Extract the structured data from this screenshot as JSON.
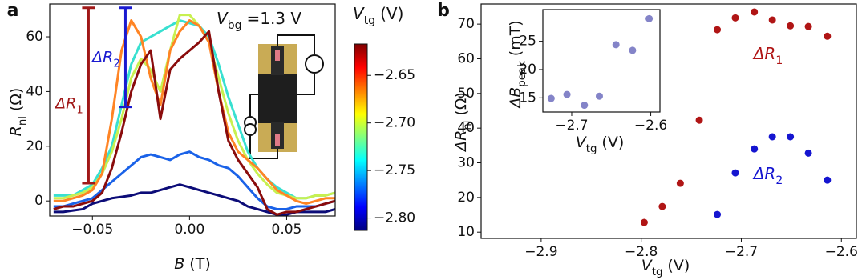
{
  "chart_data": [
    {
      "type": "line",
      "panel_label": "a",
      "xlabel": {
        "symbol": "B",
        "unit": "(T)"
      },
      "ylabel": {
        "symbol": "R",
        "subscript": "nl",
        "unit": "(Ω)"
      },
      "xlim": [
        -0.072,
        0.075
      ],
      "ylim": [
        -5.5,
        72
      ],
      "xticks": [
        {
          "value": -0.05,
          "label": "−0.05"
        },
        {
          "value": 0,
          "label": "0.00"
        },
        0.05
      ],
      "yticks": [
        0,
        20,
        40,
        60
      ],
      "x": [
        -0.07,
        -0.065,
        -0.06,
        -0.055,
        -0.05,
        -0.045,
        -0.04,
        -0.035,
        -0.03,
        -0.025,
        -0.02,
        -0.015,
        -0.01,
        -0.005,
        0,
        0.005,
        0.01,
        0.015,
        0.02,
        0.025,
        0.03,
        0.035,
        0.04,
        0.045,
        0.05,
        0.055,
        0.06,
        0.065,
        0.07,
        0.075
      ],
      "series": [
        {
          "color": "#0c0c78",
          "values": [
            -4,
            -4,
            -3.5,
            -3,
            -1,
            0,
            1,
            1.5,
            2,
            3,
            3,
            4,
            5,
            6,
            5,
            4,
            3,
            2,
            1,
            0,
            -2,
            -3,
            -4,
            -5,
            -5,
            -4,
            -4,
            -4,
            -4,
            -3
          ]
        },
        {
          "color": "#1a62e8",
          "values": [
            -2,
            -2,
            -1,
            0,
            1,
            4,
            7,
            10,
            13,
            16,
            17,
            16,
            15,
            17,
            18,
            16,
            15,
            13,
            12,
            9,
            5,
            1,
            -2,
            -3,
            -3,
            -2,
            -2,
            -2,
            -1,
            0
          ]
        },
        {
          "color": "#38e0d0",
          "values": [
            2,
            2,
            2,
            4,
            6,
            12,
            20,
            35,
            50,
            58,
            60,
            62,
            64,
            66,
            65,
            64,
            60,
            50,
            38,
            28,
            18,
            12,
            8,
            5,
            3,
            1,
            1,
            2,
            2,
            3
          ]
        },
        {
          "color": "#c8f050",
          "values": [
            1,
            1,
            2,
            3,
            5,
            10,
            18,
            30,
            45,
            52,
            48,
            40,
            55,
            68,
            68,
            64,
            58,
            45,
            32,
            22,
            15,
            10,
            6,
            3,
            2,
            1,
            1,
            2,
            2,
            3
          ]
        },
        {
          "color": "#ff8424",
          "values": [
            0,
            0,
            1,
            2,
            4,
            10,
            30,
            55,
            66,
            60,
            45,
            35,
            55,
            62,
            66,
            64,
            58,
            40,
            25,
            18,
            15,
            12,
            8,
            4,
            2,
            0,
            -1,
            0,
            1,
            1
          ]
        },
        {
          "color": "#8a0c0c",
          "values": [
            -3,
            -2,
            -2,
            -1,
            0,
            3,
            12,
            25,
            40,
            50,
            55,
            30,
            48,
            52,
            55,
            58,
            62,
            40,
            22,
            15,
            10,
            5,
            -3,
            -5,
            -4,
            -4,
            -3,
            -2,
            -1,
            0
          ]
        }
      ],
      "annotations": [
        {
          "label": {
            "symbol": "ΔR",
            "subscript": "1"
          },
          "color": "#a01818",
          "x": -0.052,
          "y": [
            6.5,
            70.6
          ]
        },
        {
          "label": {
            "symbol": "ΔR",
            "subscript": "2"
          },
          "color": "#1a1ad0",
          "x": -0.033,
          "y": [
            34.4,
            70.6
          ]
        }
      ],
      "text": {
        "symbol": "V",
        "subscript": "bg",
        "text": "=1.3 V"
      },
      "colorbar": {
        "label": {
          "symbol": "V",
          "subscript": "tg",
          "unit": "(V)"
        },
        "clim": [
          -2.813,
          -2.617
        ],
        "colormap": [
          "#00007f",
          "#0000ff",
          "#0080ff",
          "#00ffff",
          "#80ff80",
          "#ffff00",
          "#ff8000",
          "#ff0000",
          "#7f0000"
        ],
        "ticks": [
          {
            "value": -2.65,
            "label": "−2.65"
          },
          {
            "value": -2.7,
            "label": "−2.70"
          },
          {
            "value": -2.75,
            "label": "−2.75"
          },
          {
            "value": -2.8,
            "label": "−2.80"
          }
        ]
      }
    },
    {
      "type": "scatter",
      "panel_label": "b",
      "xlabel": {
        "symbol": "V",
        "subscript": "tg",
        "unit": "(V)"
      },
      "ylabel": {
        "symbol": "ΔR",
        "subscript": "nl",
        "unit": "(Ω)"
      },
      "xlim": [
        -2.96,
        -2.585
      ],
      "ylim": [
        8.2,
        75.8
      ],
      "xticks": [
        {
          "value": -2.9,
          "label": "−2.9"
        },
        {
          "value": -2.8,
          "label": "−2.8"
        },
        {
          "value": -2.7,
          "label": "−2.7"
        },
        {
          "value": -2.6,
          "label": "−2.6"
        }
      ],
      "yticks": [
        10,
        20,
        30,
        40,
        50,
        60,
        70
      ],
      "series": [
        {
          "color": "#b01515",
          "label": {
            "symbol": "ΔR",
            "subscript": "1"
          },
          "x": [
            -2.797,
            -2.779,
            -2.761,
            -2.742,
            -2.724,
            -2.706,
            -2.687,
            -2.669,
            -2.651,
            -2.633,
            -2.614
          ],
          "values": [
            12.8,
            17.4,
            24.1,
            42.3,
            68.4,
            71.8,
            73.5,
            71.2,
            69.5,
            69.3,
            66.5
          ]
        },
        {
          "color": "#1515d0",
          "label": {
            "symbol": "ΔR",
            "subscript": "2"
          },
          "x": [
            -2.724,
            -2.706,
            -2.687,
            -2.669,
            -2.651,
            -2.633,
            -2.614
          ],
          "values": [
            15.1,
            27.1,
            34.0,
            37.5,
            37.5,
            32.8,
            25.0
          ]
        }
      ]
    },
    {
      "type": "scatter",
      "xlabel": {
        "symbol": "V",
        "subscript": "tg",
        "unit": "(V)"
      },
      "ylabel": {
        "symbol": "ΔB",
        "subscript": "peak",
        "unit": "(mT)"
      },
      "xlim": [
        -2.7365,
        -2.5884
      ],
      "ylim": [
        12.5,
        30.6
      ],
      "xticks": [
        {
          "value": -2.7,
          "label": "−2.7"
        },
        {
          "value": -2.6,
          "label": "−2.6"
        }
      ],
      "yticks": [
        15,
        20,
        25
      ],
      "series": [
        {
          "color": "#8484c8",
          "x": [
            -2.726,
            -2.706,
            -2.684,
            -2.665,
            -2.644,
            -2.623,
            -2.602
          ],
          "values": [
            14.9,
            15.6,
            13.7,
            15.3,
            24.4,
            23.4,
            29.0
          ]
        }
      ]
    }
  ]
}
